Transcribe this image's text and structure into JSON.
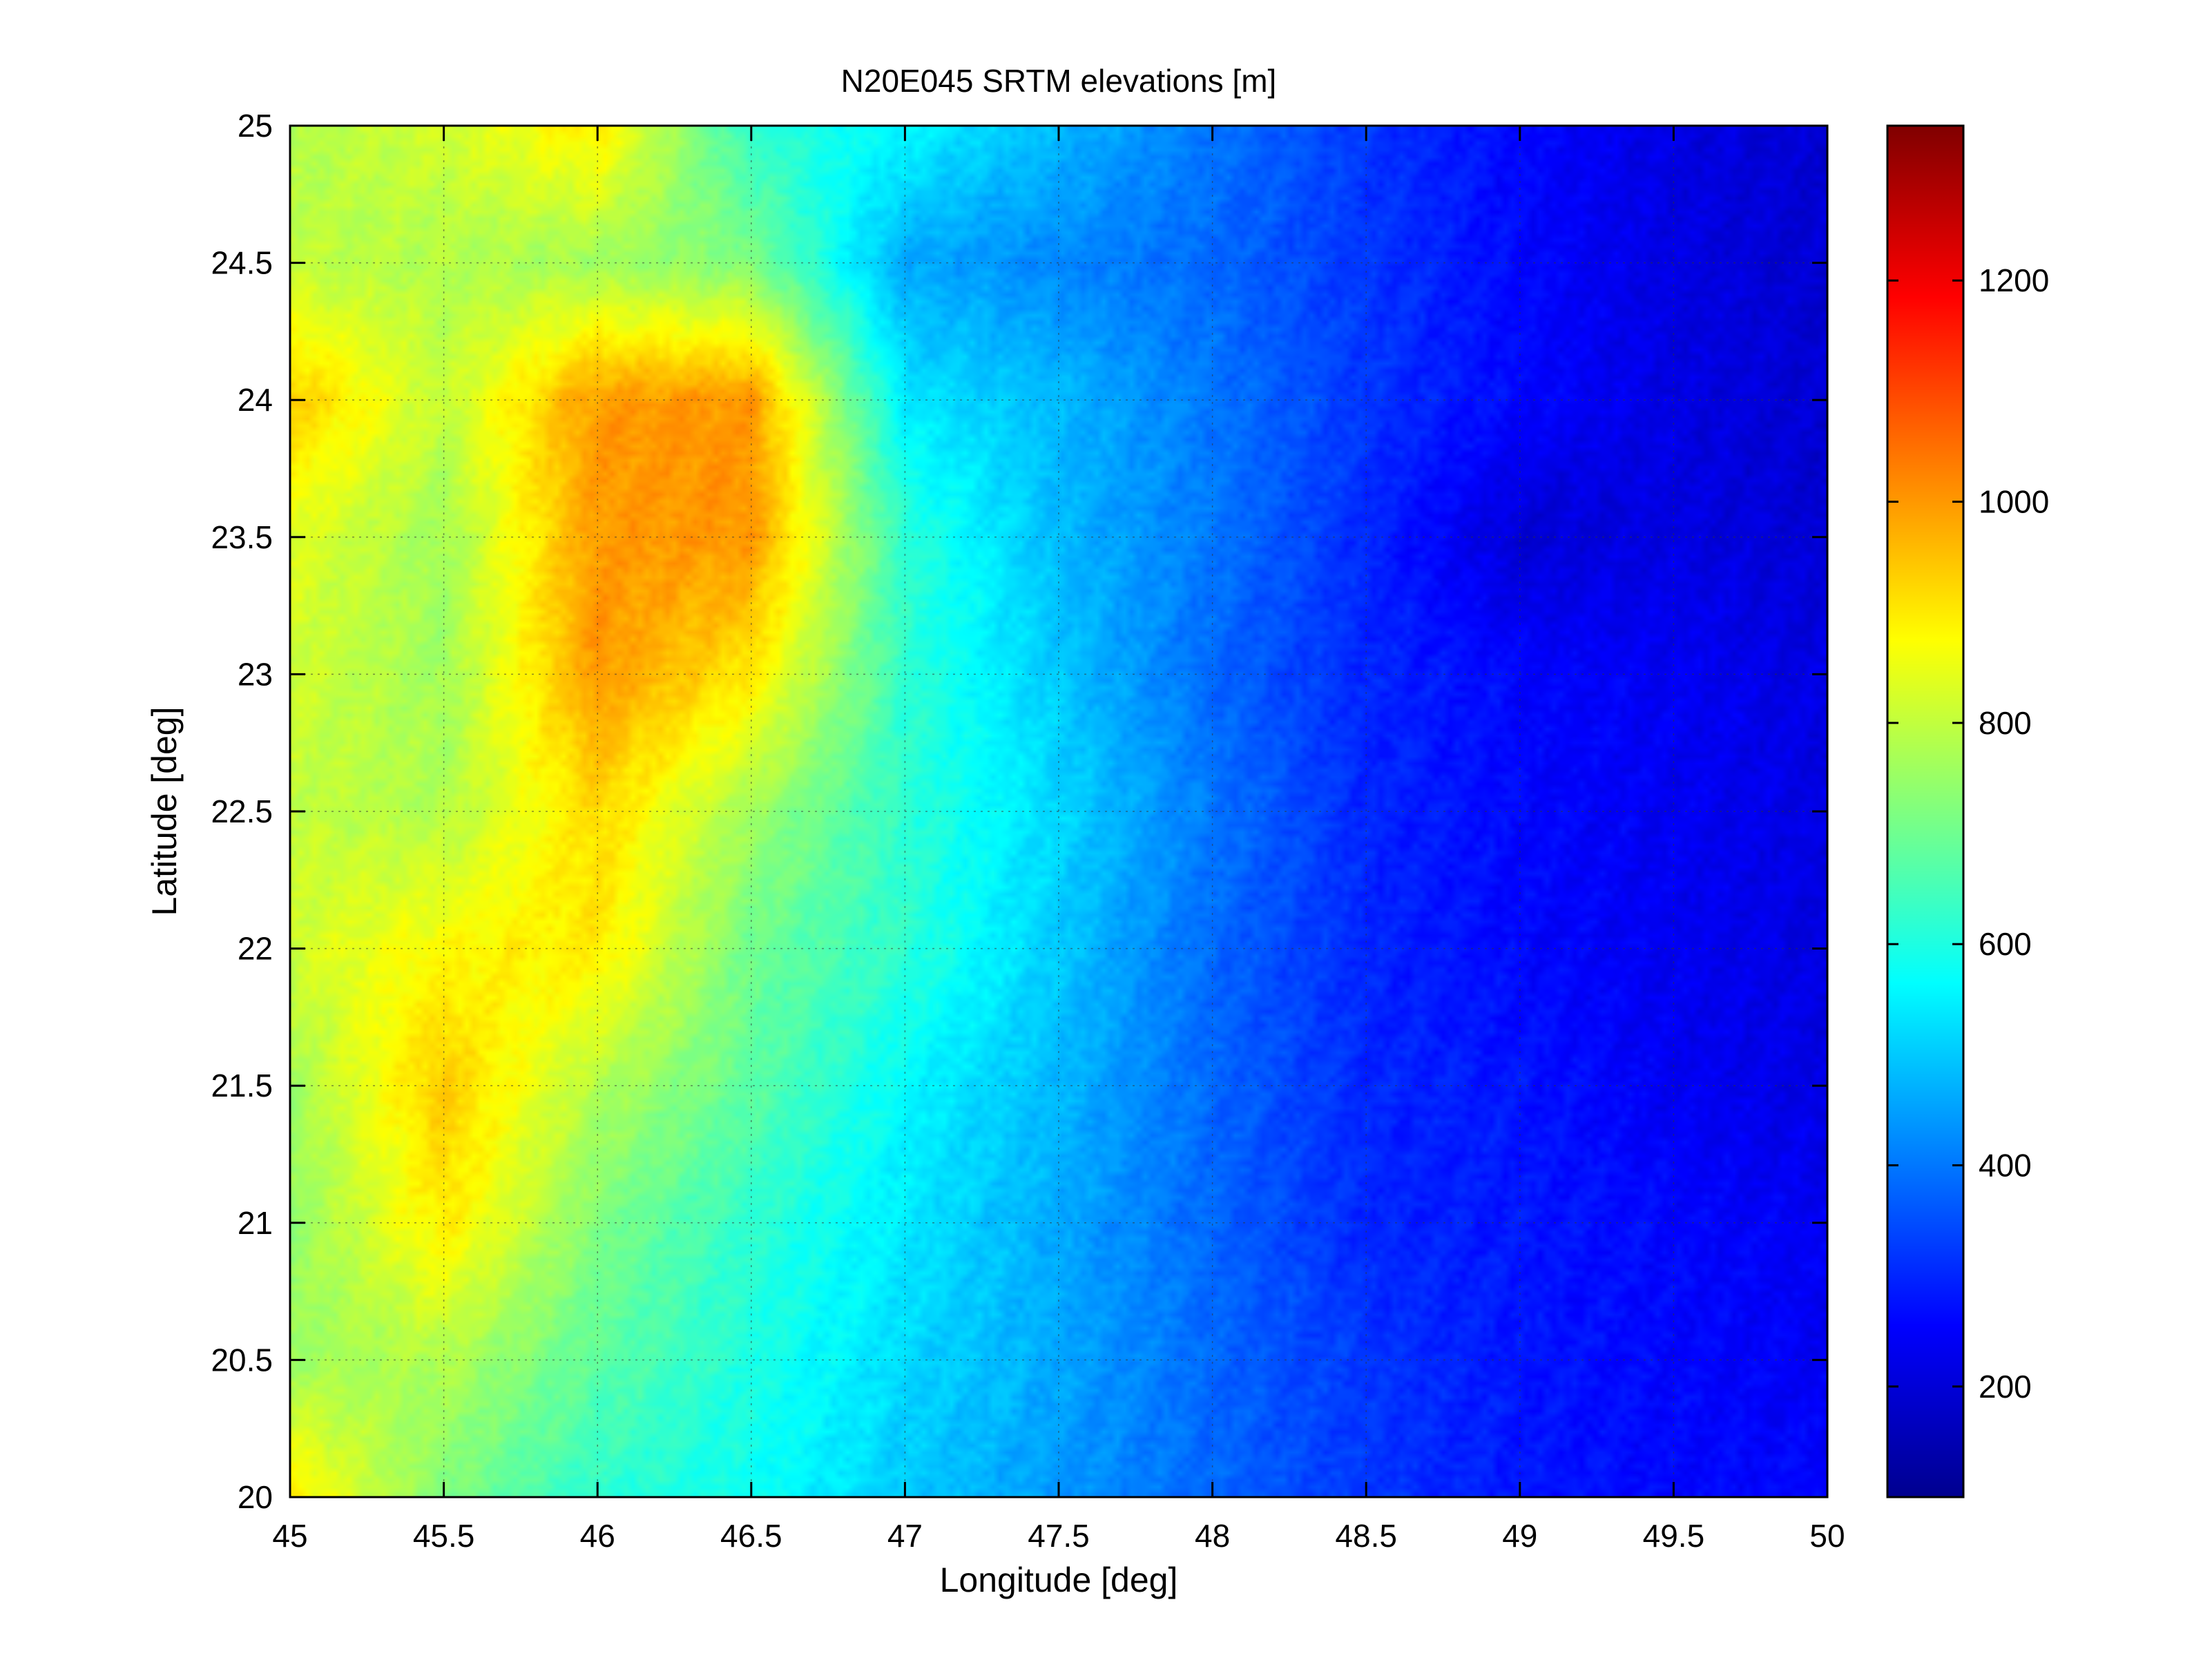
{
  "chart_data": {
    "type": "heatmap",
    "title": "N20E045 SRTM elevations [m]",
    "xlabel": "Longitude [deg]",
    "ylabel": "Latitude [deg]",
    "xlim": [
      45,
      50
    ],
    "ylim": [
      20,
      25
    ],
    "xticks": [
      "45",
      "45.5",
      "46",
      "46.5",
      "47",
      "47.5",
      "48",
      "48.5",
      "49",
      "49.5",
      "50"
    ],
    "yticks": [
      "20",
      "20.5",
      "21",
      "21.5",
      "22",
      "22.5",
      "23",
      "23.5",
      "24",
      "24.5",
      "25"
    ],
    "grid": true,
    "colormap": "jet",
    "colorbar": {
      "range": [
        100,
        1340
      ],
      "ticks": [
        "200",
        "400",
        "600",
        "800",
        "1000",
        "1200"
      ]
    },
    "elevation_grid_m": {
      "lon": [
        45.0,
        45.5,
        46.0,
        46.5,
        47.0,
        47.5,
        48.0,
        48.5,
        49.0,
        49.5,
        50.0
      ],
      "lat": [
        25.0,
        24.5,
        24.0,
        23.5,
        23.0,
        22.5,
        22.0,
        21.5,
        21.0,
        20.5,
        20.0
      ],
      "values": [
        [
          780,
          820,
          900,
          620,
          560,
          480,
          400,
          320,
          260,
          220,
          200
        ],
        [
          800,
          780,
          760,
          720,
          460,
          420,
          380,
          320,
          260,
          220,
          200
        ],
        [
          940,
          800,
          1000,
          1000,
          540,
          480,
          400,
          320,
          260,
          220,
          200
        ],
        [
          840,
          760,
          1000,
          1000,
          620,
          480,
          400,
          300,
          200,
          220,
          200
        ],
        [
          820,
          760,
          1000,
          900,
          620,
          500,
          380,
          300,
          260,
          240,
          220
        ],
        [
          800,
          780,
          920,
          760,
          620,
          520,
          400,
          300,
          260,
          240,
          220
        ],
        [
          820,
          880,
          900,
          700,
          620,
          500,
          380,
          300,
          260,
          240,
          220
        ],
        [
          760,
          940,
          780,
          680,
          560,
          480,
          380,
          300,
          280,
          240,
          220
        ],
        [
          740,
          900,
          720,
          620,
          540,
          460,
          380,
          300,
          280,
          260,
          240
        ],
        [
          760,
          780,
          680,
          600,
          520,
          460,
          380,
          320,
          280,
          260,
          240
        ],
        [
          900,
          720,
          620,
          580,
          500,
          440,
          380,
          320,
          280,
          260,
          260
        ]
      ]
    }
  }
}
